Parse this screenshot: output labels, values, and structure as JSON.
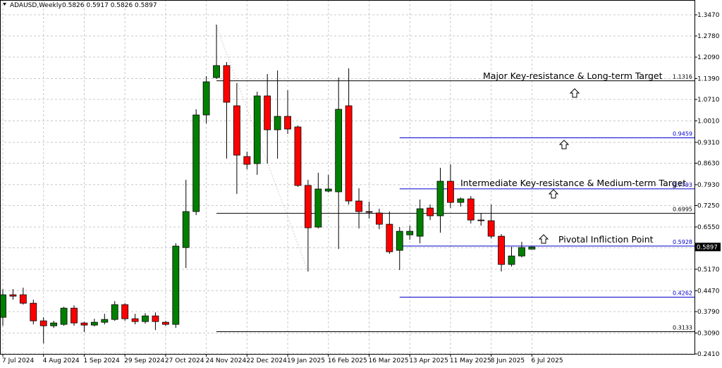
{
  "chart_data": {
    "type": "candlestick",
    "title": "ADAUSD,Weekly",
    "subtitle": "0.5826 0.5917 0.5826 0.5897",
    "categories": [
      "7 Jul 2024",
      null,
      null,
      null,
      "4 Aug 2024",
      null,
      null,
      null,
      "1 Sep 2024",
      null,
      null,
      null,
      "29 Sep 2024",
      null,
      null,
      null,
      "27 Oct 2024",
      null,
      null,
      null,
      "24 Nov 2024",
      null,
      null,
      null,
      "22 Dec 2024",
      null,
      null,
      null,
      "19 Jan 2025",
      null,
      null,
      null,
      "16 Feb 2025",
      null,
      null,
      null,
      "16 Mar 2025",
      null,
      null,
      null,
      "13 Apr 2025",
      null,
      null,
      null,
      "11 May 2025",
      null,
      null,
      null,
      "8 Jun 2025",
      null,
      null,
      null,
      "6 Jul 2025"
    ],
    "open": [
      0.3603,
      0.4339,
      0.4339,
      0.4063,
      0.3488,
      0.3327,
      0.3373,
      0.3902,
      0.3419,
      0.335,
      0.3442,
      0.3534,
      0.4017,
      0.3557,
      0.3465,
      0.3649,
      0.3442,
      0.3373,
      0.588,
      0.7053,
      1.0204,
      1.1423,
      1.1814,
      1.0503,
      0.8847,
      0.8617,
      1.0825,
      0.9721,
      1.0158,
      0.9813,
      0.7904,
      0.6547,
      0.772,
      0.7697,
      1.0503,
      0.7398,
      0.7053,
      0.7007,
      0.6639,
      0.5788,
      0.6294,
      0.6248,
      0.7168,
      0.6915,
      0.8042,
      0.7352,
      0.7467,
      0.6777,
      0.6754,
      0.6248,
      0.5328,
      0.5604,
      0.5826
    ],
    "high": [
      0.4523,
      0.4523,
      0.4569,
      0.4178,
      0.3603,
      0.3488,
      0.3948,
      0.3994,
      0.3465,
      0.3557,
      0.3718,
      0.4132,
      0.4063,
      0.3718,
      0.3741,
      0.3764,
      0.3488,
      0.6018,
      0.8088,
      1.0388,
      1.1469,
      1.3148,
      1.1929,
      1.1239,
      0.9008,
      1.0963,
      1.1538,
      1.1653,
      1.1009,
      0.9859,
      0.8088,
      0.8318,
      0.8249,
      1.1423,
      1.1722,
      0.7812,
      0.7375,
      0.7145,
      0.7053,
      0.6547,
      0.6593,
      0.7444,
      0.7283,
      0.8479,
      0.8594,
      0.7513,
      0.7559,
      0.7007,
      0.7283,
      0.6317,
      0.5903,
      0.6064,
      0.5917
    ],
    "low": [
      0.3327,
      0.4178,
      0.4017,
      0.3373,
      0.2752,
      0.3258,
      0.3327,
      0.3327,
      0.312,
      0.3304,
      0.3373,
      0.3488,
      0.3488,
      0.3373,
      0.3396,
      0.3189,
      0.3327,
      0.3258,
      0.5213,
      0.6938,
      0.9928,
      1.1377,
      0.8778,
      0.7628,
      0.8433,
      0.8249,
      0.8617,
      0.8778,
      0.9583,
      0.7858,
      0.5098,
      0.6501,
      0.7674,
      0.5834,
      0.7283,
      0.6501,
      0.6823,
      0.6478,
      0.5673,
      0.5144,
      0.6133,
      0.6018,
      0.6777,
      0.6363,
      0.7168,
      0.7214,
      0.6662,
      0.6593,
      0.6179,
      0.5098,
      0.5259,
      0.5558,
      0.5826
    ],
    "close": [
      0.4339,
      0.4293,
      0.4063,
      0.3488,
      0.3327,
      0.3419,
      0.3902,
      0.3419,
      0.335,
      0.3442,
      0.3534,
      0.4017,
      0.3557,
      0.3465,
      0.3649,
      0.3465,
      0.3373,
      0.5926,
      0.7053,
      1.0204,
      1.1285,
      1.1814,
      1.0618,
      0.8893,
      0.8594,
      1.0825,
      0.9721,
      1.0158,
      0.9744,
      0.7904,
      0.6524,
      0.7789,
      0.7789,
      1.0388,
      0.7398,
      0.7053,
      0.703,
      0.6639,
      0.5742,
      0.6409,
      0.6409,
      0.7145,
      0.6915,
      0.8042,
      0.7352,
      0.7467,
      0.6777,
      0.6754,
      0.6248,
      0.5328,
      0.5604,
      0.588,
      0.5897
    ],
    "up_color": "#008000",
    "down_color": "#ff0000",
    "current_price": 0.5897,
    "levels": [
      {
        "value": 1.1316,
        "color": "#000000"
      },
      {
        "value": 0.9459,
        "color": "#0000cc"
      },
      {
        "value": 0.7793,
        "color": "#0000cc"
      },
      {
        "value": 0.6995,
        "color": "#000000"
      },
      {
        "value": 0.5928,
        "color": "#0000cc"
      },
      {
        "value": 0.4262,
        "color": "#0000cc"
      },
      {
        "value": 0.3133,
        "color": "#000000"
      }
    ],
    "annotations": [
      "Major Key-resistance & Long-term Target",
      "Intermediate Key-resistance & Medium-term Target",
      "Pivotal Infliction Point"
    ],
    "ylim": [
      0.241,
      1.3907
    ],
    "yticks": [
      {
        "value": 1.347,
        "label": "1.3470"
      },
      {
        "value": 1.278,
        "label": "1.2780"
      },
      {
        "value": 1.209,
        "label": "1.2090"
      },
      {
        "value": 1.139,
        "label": "1.1390"
      },
      {
        "value": 1.071,
        "label": "1.0710"
      },
      {
        "value": 1.001,
        "label": "1.0010"
      },
      {
        "value": 0.931,
        "label": "0.9310"
      },
      {
        "value": 0.863,
        "label": "0.8630"
      },
      {
        "value": 0.793,
        "label": "0.7930"
      },
      {
        "value": 0.725,
        "label": "0.7250"
      },
      {
        "value": 0.655,
        "label": "0.6550"
      },
      {
        "value": 0.587,
        "label": "0.5870"
      },
      {
        "value": 0.517,
        "label": "0.5170"
      },
      {
        "value": 0.447,
        "label": "0.4470"
      },
      {
        "value": 0.379,
        "label": "0.3790"
      },
      {
        "value": 0.309,
        "label": "0.3090"
      },
      {
        "value": 0.241,
        "label": "0.2410"
      }
    ],
    "grid": true
  }
}
